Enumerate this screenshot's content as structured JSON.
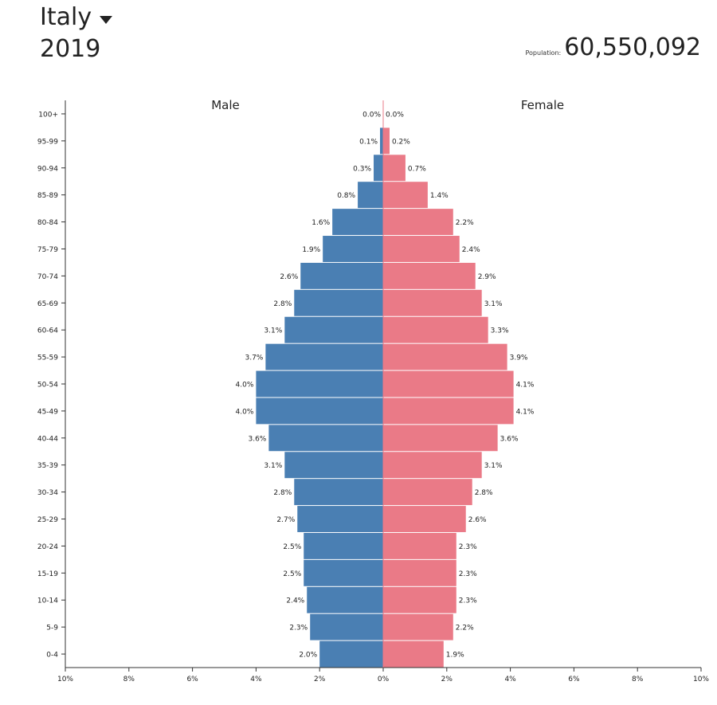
{
  "header": {
    "country": "Italy",
    "year": "2019",
    "population_label": "Population:",
    "population_value": "60,550,092"
  },
  "chart_data": {
    "type": "bar",
    "orientation": "horizontal-pyramid",
    "categories": [
      "100+",
      "95-99",
      "90-94",
      "85-89",
      "80-84",
      "75-79",
      "70-74",
      "65-69",
      "60-64",
      "55-59",
      "50-54",
      "45-49",
      "40-44",
      "35-39",
      "30-34",
      "25-29",
      "20-24",
      "15-19",
      "10-14",
      "5-9",
      "0-4"
    ],
    "series": [
      {
        "name": "Male",
        "color": "#4a7fb3",
        "values": [
          0.0,
          0.1,
          0.3,
          0.8,
          1.6,
          1.9,
          2.6,
          2.8,
          3.1,
          3.7,
          4.0,
          4.0,
          3.6,
          3.1,
          2.8,
          2.7,
          2.5,
          2.5,
          2.4,
          2.3,
          2.0
        ],
        "labels": [
          "0.0%",
          "0.1%",
          "0.3%",
          "0.8%",
          "1.6%",
          "1.9%",
          "2.6%",
          "2.8%",
          "3.1%",
          "3.7%",
          "4.0%",
          "4.0%",
          "3.6%",
          "3.1%",
          "2.8%",
          "2.7%",
          "2.5%",
          "2.5%",
          "2.4%",
          "2.3%",
          "2.0%"
        ]
      },
      {
        "name": "Female",
        "color": "#ea7a87",
        "values": [
          0.0,
          0.2,
          0.7,
          1.4,
          2.2,
          2.4,
          2.9,
          3.1,
          3.3,
          3.9,
          4.1,
          4.1,
          3.6,
          3.1,
          2.8,
          2.6,
          2.3,
          2.3,
          2.3,
          2.2,
          1.9
        ],
        "labels": [
          "0.0%",
          "0.2%",
          "0.7%",
          "1.4%",
          "2.2%",
          "2.4%",
          "2.9%",
          "3.1%",
          "3.3%",
          "3.9%",
          "4.1%",
          "4.1%",
          "3.6%",
          "3.1%",
          "2.8%",
          "2.6%",
          "2.3%",
          "2.3%",
          "2.3%",
          "2.2%",
          "1.9%"
        ]
      }
    ],
    "xlim": [
      -10,
      10
    ],
    "xticks": [
      -10,
      -8,
      -6,
      -4,
      -2,
      0,
      2,
      4,
      6,
      8,
      10
    ],
    "xtick_labels": [
      "10%",
      "8%",
      "6%",
      "4%",
      "2%",
      "0%",
      "2%",
      "4%",
      "6%",
      "8%",
      "10%"
    ],
    "grid": false
  }
}
